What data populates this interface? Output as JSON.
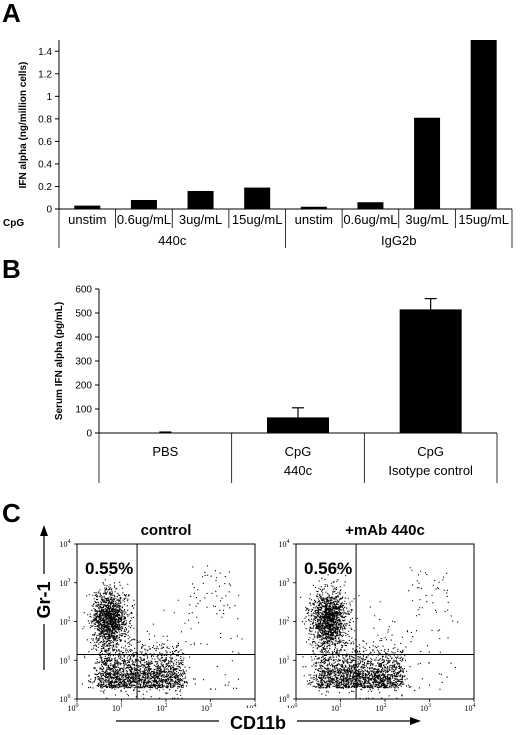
{
  "panels": {
    "a_letter": "A",
    "b_letter": "B",
    "c_letter": "C"
  },
  "chart_data": [
    {
      "type": "bar",
      "panel": "A",
      "ylabel": "IFN alpha (ng/million cells)",
      "row_label": "CpG",
      "ylim": [
        0,
        1.5
      ],
      "yticks": [
        "0",
        "0.2",
        "0.4",
        "0.6",
        "0.8",
        "1",
        "1.2",
        "1.4"
      ],
      "categories": [
        "unstim",
        "0.6ug/mL",
        "3ug/mL",
        "15ug/mL",
        "unstim",
        "0.6ug/mL",
        "3ug/mL",
        "15ug/mL"
      ],
      "groups": [
        "440c",
        "IgG2b"
      ],
      "values": [
        0.03,
        0.08,
        0.16,
        0.19,
        0.02,
        0.06,
        0.81,
        1.5
      ],
      "grid": false,
      "color": "#000000"
    },
    {
      "type": "bar",
      "panel": "B",
      "ylabel": "Serum IFN alpha (pg/mL)",
      "ylim": [
        0,
        600
      ],
      "yticks": [
        "0",
        "100",
        "200",
        "300",
        "400",
        "500",
        "600"
      ],
      "categories": [
        "PBS",
        "CpG",
        "CpG"
      ],
      "sublabels": [
        "",
        "440c",
        "Isotype control"
      ],
      "values": [
        2,
        65,
        515
      ],
      "errors": [
        2,
        40,
        45
      ],
      "grid": false,
      "color": "#000000"
    },
    {
      "type": "scatter",
      "panel": "C",
      "xlabel": "CD11b",
      "ylabel": "Gr-1",
      "log_scale": true,
      "axis_range": [
        "10^0",
        "10^4"
      ],
      "tick_bases": [
        "10",
        "10",
        "10",
        "10",
        "10"
      ],
      "tick_exps": [
        "0",
        "1",
        "2",
        "3",
        "4"
      ],
      "plots": [
        {
          "title": "control",
          "gate_percent": "0.55%"
        },
        {
          "title": "+mAb 440c",
          "gate_percent": "0.56%"
        }
      ]
    }
  ]
}
